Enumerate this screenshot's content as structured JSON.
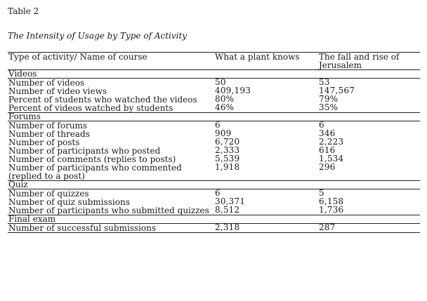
{
  "table_label": "Table 2",
  "caption": "The Intensity of Usage by Type of Activity",
  "columns": [
    "Type of activity/ Name of course",
    "What a plant knows",
    "The fall and rise of Jerusalem"
  ],
  "sections": [
    {
      "title": "Videos",
      "rows": [
        {
          "label": "Number of videos",
          "a": "50",
          "b": "53"
        },
        {
          "label": "Number of video views",
          "a": "409,193",
          "b": "147,567"
        },
        {
          "label": "Percent of students who watched the videos",
          "a": "80%",
          "b": "79%"
        },
        {
          "label": "Percent of videos watched by students",
          "a": "46%",
          "b": "35%"
        }
      ]
    },
    {
      "title": "Forums",
      "rows": [
        {
          "label": "Number of forums",
          "a": "6",
          "b": "6"
        },
        {
          "label": "Number of threads",
          "a": "909",
          "b": "346"
        },
        {
          "label": "Number of posts",
          "a": "6,720",
          "b": "2,223"
        },
        {
          "label": "Number of participants who posted",
          "a": "2,333",
          "b": "616"
        },
        {
          "label": "Number of comments (replies to posts)",
          "a": "5,539",
          "b": "1,534"
        },
        {
          "label": "Number of participants who commented (replied to a post)",
          "a": "1,918",
          "b": "296"
        }
      ]
    },
    {
      "title": "Quiz",
      "rows": [
        {
          "label": "Number of quizzes",
          "a": "6",
          "b": "5"
        },
        {
          "label": "Number of quiz submissions",
          "a": "30,371",
          "b": "6,158"
        },
        {
          "label": "Number of participants who submitted quizzes",
          "a": "8,512",
          "b": "1,736"
        }
      ]
    },
    {
      "title": "Final exam",
      "rows": [
        {
          "label": "Number of successful submissions",
          "a": "2,318",
          "b": "287"
        }
      ]
    }
  ]
}
